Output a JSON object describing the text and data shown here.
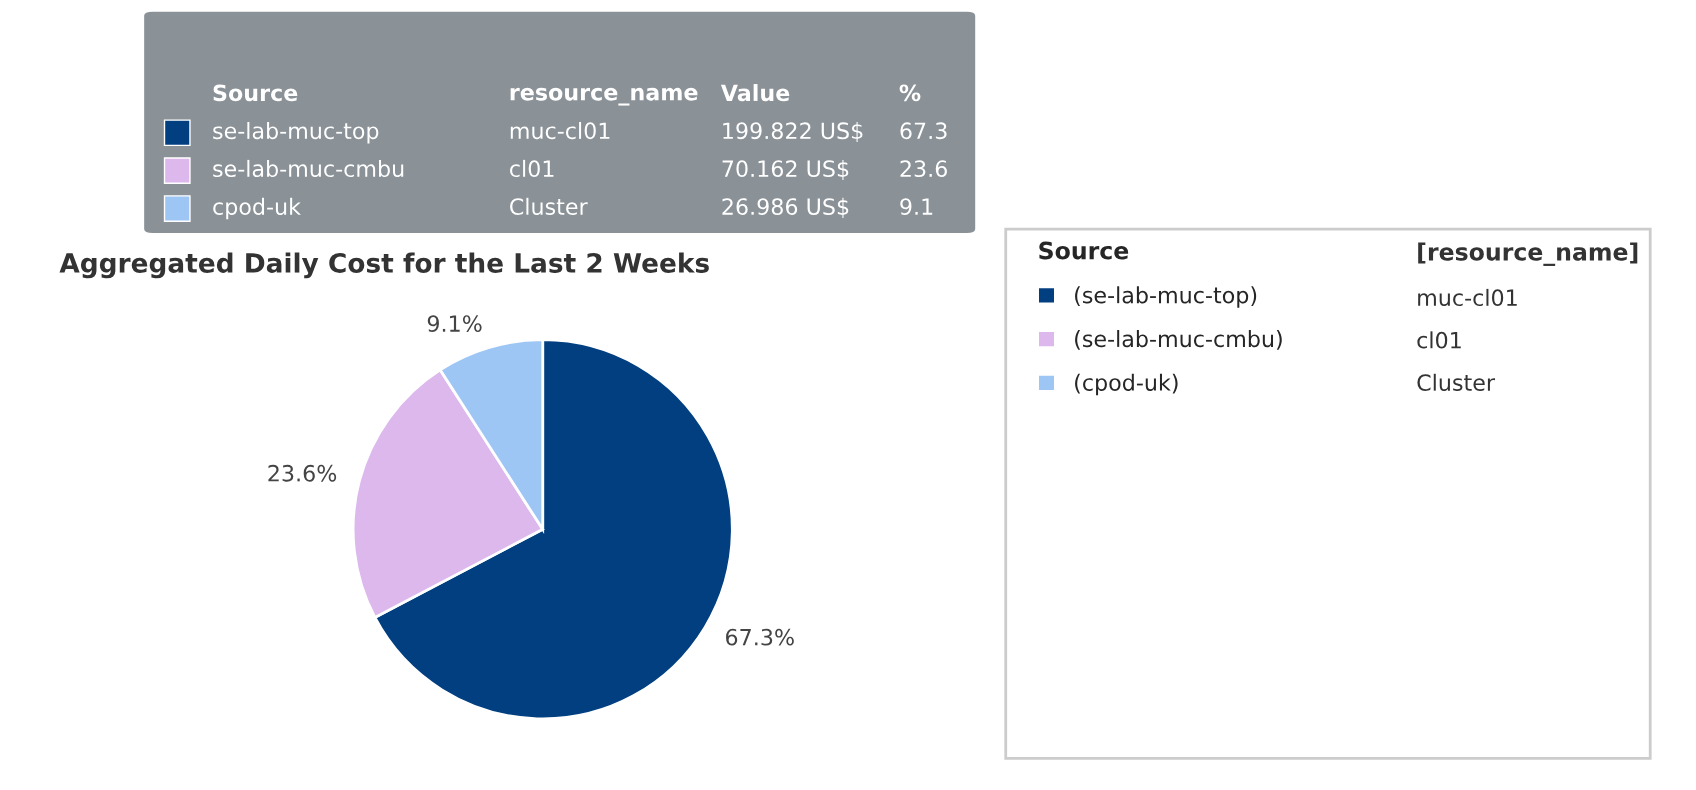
{
  "chart_data": {
    "type": "pie",
    "title": "Aggregated Daily Cost for the Last 2 Weeks",
    "categories": [
      "(se-lab-muc-top)",
      "(se-lab-muc-cmbu)",
      "(cpod-uk)"
    ],
    "values": [
      67.3,
      23.6,
      9.1
    ],
    "value_labels": [
      "67.3%",
      "23.6%",
      "9.1%"
    ],
    "colors": [
      "#013f80",
      "#dcb8ec",
      "#9ec6f5"
    ],
    "legend": "right",
    "legend_title": "Source",
    "annotations": [
      "[resource_name]",
      "muc-cl01",
      "cl01",
      "Cluster",
      "Source",
      "resource_name",
      "Value",
      "%",
      "se-lab-muc-top",
      "muc-cl01",
      "199.822 US$",
      "67.3",
      "se-lab-muc-cmbu",
      "cl01",
      "70.162 US$",
      "23.6",
      "cpod-uk",
      "Cluster",
      "26.986 US$",
      "9.1"
    ]
  }
}
